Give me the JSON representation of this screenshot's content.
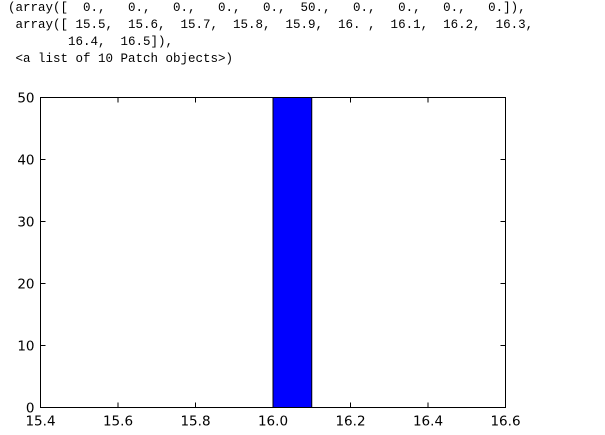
{
  "output": {
    "lines": [
      "(array([  0.,   0.,   0.,   0.,   0.,  50.,   0.,   0.,   0.,   0.]),",
      " array([ 15.5,  15.6,  15.7,  15.8,  15.9,  16. ,  16.1,  16.2,  16.3,",
      "        16.4,  16.5]),",
      " <a list of 10 Patch objects>)"
    ]
  },
  "chart_data": {
    "type": "bar",
    "bin_edges": [
      15.5,
      15.6,
      15.7,
      15.8,
      15.9,
      16.0,
      16.1,
      16.2,
      16.3,
      16.4,
      16.5
    ],
    "values": [
      0,
      0,
      0,
      0,
      0,
      50,
      0,
      0,
      0,
      0
    ],
    "xlim": [
      15.4,
      16.6
    ],
    "ylim": [
      0,
      50
    ],
    "xticks": [
      "15.4",
      "15.6",
      "15.8",
      "16.0",
      "16.2",
      "16.4",
      "16.6"
    ],
    "yticks": [
      "0",
      "10",
      "20",
      "30",
      "40",
      "50"
    ],
    "bar_color": "#0000ff",
    "grid": false,
    "title": "",
    "xlabel": "",
    "ylabel": ""
  }
}
